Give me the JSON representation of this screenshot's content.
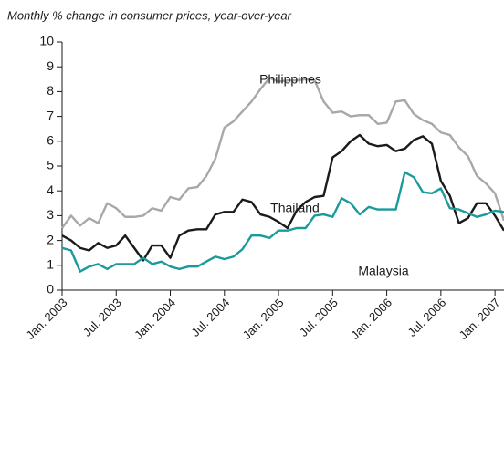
{
  "chart_data": {
    "type": "line",
    "title": "Monthly % change in consumer prices, year-over-year",
    "x": [
      "2003-01",
      "2003-02",
      "2003-03",
      "2003-04",
      "2003-05",
      "2003-06",
      "2003-07",
      "2003-08",
      "2003-09",
      "2003-10",
      "2003-11",
      "2003-12",
      "2004-01",
      "2004-02",
      "2004-03",
      "2004-04",
      "2004-05",
      "2004-06",
      "2004-07",
      "2004-08",
      "2004-09",
      "2004-10",
      "2004-11",
      "2004-12",
      "2005-01",
      "2005-02",
      "2005-03",
      "2005-04",
      "2005-05",
      "2005-06",
      "2005-07",
      "2005-08",
      "2005-09",
      "2005-10",
      "2005-11",
      "2005-12",
      "2006-01",
      "2006-02",
      "2006-03",
      "2006-04",
      "2006-05",
      "2006-06",
      "2006-07",
      "2006-08",
      "2006-09",
      "2006-10",
      "2006-11",
      "2006-12",
      "2007-01",
      "2007-02"
    ],
    "series": [
      {
        "name": "Philippines",
        "color": "#a8a8a8",
        "values": [
          2.5,
          3.0,
          2.6,
          2.9,
          2.7,
          3.5,
          3.3,
          2.95,
          2.95,
          3.0,
          3.3,
          3.2,
          3.75,
          3.65,
          4.1,
          4.15,
          4.6,
          5.3,
          6.55,
          6.8,
          7.2,
          7.6,
          8.1,
          8.55,
          8.4,
          8.45,
          8.45,
          8.5,
          8.45,
          7.6,
          7.15,
          7.2,
          7.0,
          7.05,
          7.05,
          6.7,
          6.75,
          7.6,
          7.65,
          7.1,
          6.85,
          6.7,
          6.35,
          6.25,
          5.75,
          5.4,
          4.6,
          4.3,
          3.9,
          2.8
        ]
      },
      {
        "name": "Thailand",
        "color": "#1a1a1a",
        "values": [
          2.2,
          2.0,
          1.7,
          1.6,
          1.9,
          1.7,
          1.8,
          2.2,
          1.7,
          1.2,
          1.8,
          1.8,
          1.3,
          2.2,
          2.4,
          2.45,
          2.45,
          3.05,
          3.15,
          3.15,
          3.65,
          3.55,
          3.05,
          2.95,
          2.75,
          2.5,
          3.2,
          3.55,
          3.75,
          3.8,
          5.35,
          5.6,
          6.0,
          6.25,
          5.9,
          5.8,
          5.85,
          5.6,
          5.7,
          6.05,
          6.2,
          5.9,
          4.4,
          3.8,
          2.7,
          2.9,
          3.5,
          3.5,
          3.0,
          2.4
        ]
      },
      {
        "name": "Malaysia",
        "color": "#1a9a9a",
        "values": [
          1.7,
          1.6,
          0.75,
          0.95,
          1.05,
          0.85,
          1.05,
          1.05,
          1.05,
          1.3,
          1.05,
          1.15,
          0.95,
          0.85,
          0.95,
          0.95,
          1.15,
          1.35,
          1.25,
          1.35,
          1.65,
          2.2,
          2.2,
          2.1,
          2.4,
          2.4,
          2.5,
          2.5,
          3.0,
          3.05,
          2.95,
          3.7,
          3.5,
          3.05,
          3.35,
          3.25,
          3.25,
          3.25,
          4.75,
          4.55,
          3.95,
          3.9,
          4.1,
          3.3,
          3.25,
          3.1,
          2.95,
          3.05,
          3.2,
          3.15
        ]
      }
    ],
    "xlim": [
      "2003-01",
      "2007-02"
    ],
    "xticks": [
      {
        "value": "2003-01",
        "label": "Jan. 2003"
      },
      {
        "value": "2003-07",
        "label": "Jul. 2003"
      },
      {
        "value": "2004-01",
        "label": "Jan. 2004"
      },
      {
        "value": "2004-07",
        "label": "Jul. 2004"
      },
      {
        "value": "2005-01",
        "label": "Jan. 2005"
      },
      {
        "value": "2005-07",
        "label": "Jul. 2005"
      },
      {
        "value": "2006-01",
        "label": "Jan. 2006"
      },
      {
        "value": "2006-07",
        "label": "Jul. 2006"
      },
      {
        "value": "2007-01",
        "label": "Jan. 2007"
      }
    ],
    "ylim": [
      0,
      10
    ],
    "yticks": [
      0,
      1,
      2,
      3,
      4,
      5,
      6,
      7,
      8,
      9,
      10
    ]
  }
}
